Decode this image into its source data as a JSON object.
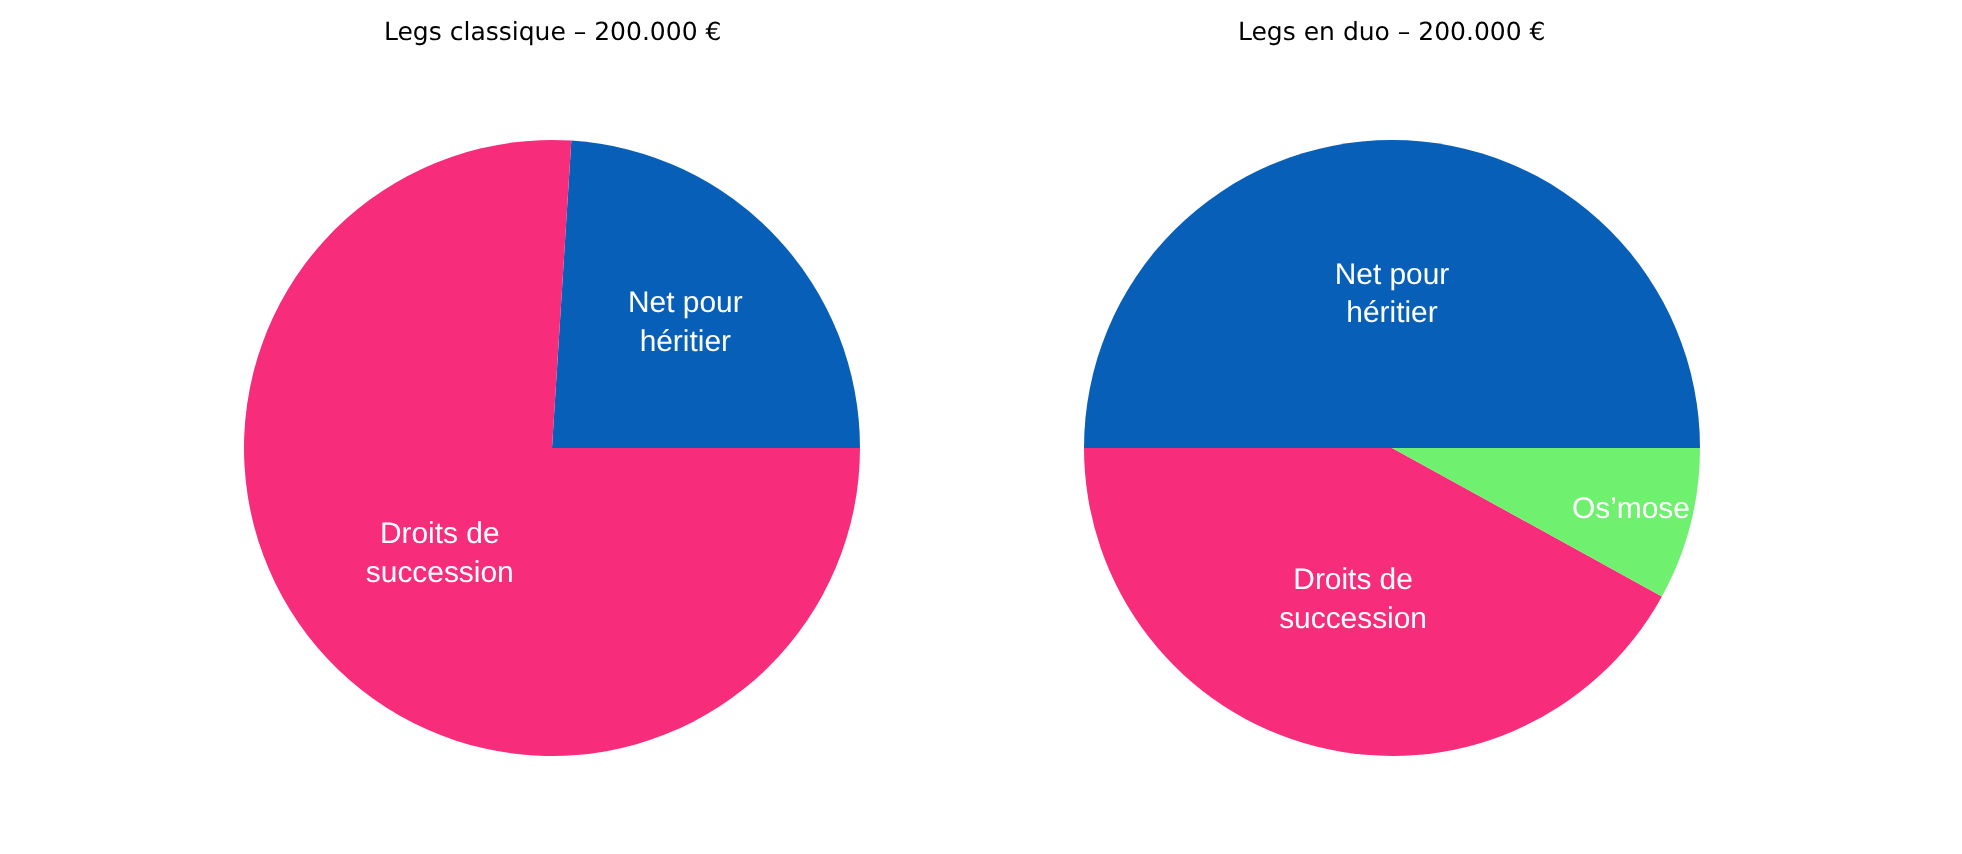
{
  "chart_data": [
    {
      "type": "pie",
      "title": "Legs classique – 200.000 €",
      "categories": [
        "Net pour héritier",
        "Droits de succession"
      ],
      "values": [
        24,
        76
      ],
      "colors": [
        "#075fb8",
        "#f72c7b"
      ]
    },
    {
      "type": "pie",
      "title": "Legs en duo – 200.000 €",
      "categories": [
        "Net pour héritier",
        "Droits de succession",
        "Os’mose"
      ],
      "values": [
        50,
        42,
        8
      ],
      "colors": [
        "#075fb8",
        "#f72c7b",
        "#6ff06f"
      ]
    }
  ]
}
